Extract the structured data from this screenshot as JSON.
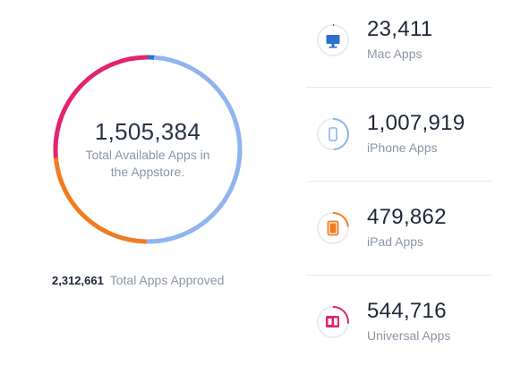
{
  "summary": {
    "total_available": "1,505,384",
    "total_label": "Total Available Apps in the Appstore.",
    "approved_count": "2,312,661",
    "approved_label": "Total Apps Approved"
  },
  "stats": [
    {
      "value": "23,411",
      "label": "Mac Apps",
      "icon": "desktop-icon",
      "color": "#2f6fce"
    },
    {
      "value": "1,007,919",
      "label": "iPhone Apps",
      "icon": "phone-icon",
      "color": "#8fb4ef"
    },
    {
      "value": "479,862",
      "label": "iPad Apps",
      "icon": "tablet-icon",
      "color": "#f07c22"
    },
    {
      "value": "544,716",
      "label": "Universal Apps",
      "icon": "universal-devices-icon",
      "color": "#e2246e"
    }
  ]
}
